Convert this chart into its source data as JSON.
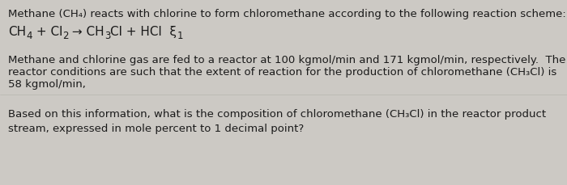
{
  "background_color": "#ccc9c4",
  "text_color": "#1a1a1a",
  "line1": "Methane (CH₄) reacts with chlorine to form chloromethane according to the following reaction scheme:",
  "line3": "Methane and chlorine gas are fed to a reactor at 100 kgmol/min and 171 kgmol/min, respectively.  The",
  "line4": "reactor conditions are such that the extent of reaction for the production of chloromethane (CH₃Cl) is",
  "line5": "58 kgmol/min,",
  "line6": "Based on this information, what is the composition of chloromethane (CH₃Cl) in the reactor product",
  "line7": "stream, expressed in mole percent to 1 decimal point?",
  "eq_parts": [
    {
      "text": "CH",
      "sub": "",
      "normal": true
    },
    {
      "text": "4",
      "sub": "4",
      "normal": false
    },
    {
      "text": " + Cl",
      "sub": "",
      "normal": true
    },
    {
      "text": "2",
      "sub": "2",
      "normal": false
    },
    {
      "text": " → CH",
      "sub": "",
      "normal": true
    },
    {
      "text": "3",
      "sub": "3",
      "normal": false
    },
    {
      "text": "Cl + HCl  ξ",
      "sub": "",
      "normal": true
    },
    {
      "text": "1",
      "sub": "1",
      "normal": false
    }
  ],
  "fontsize": 9.5,
  "eq_fontsize": 11.0,
  "eq_sub_fontsize": 8.5
}
